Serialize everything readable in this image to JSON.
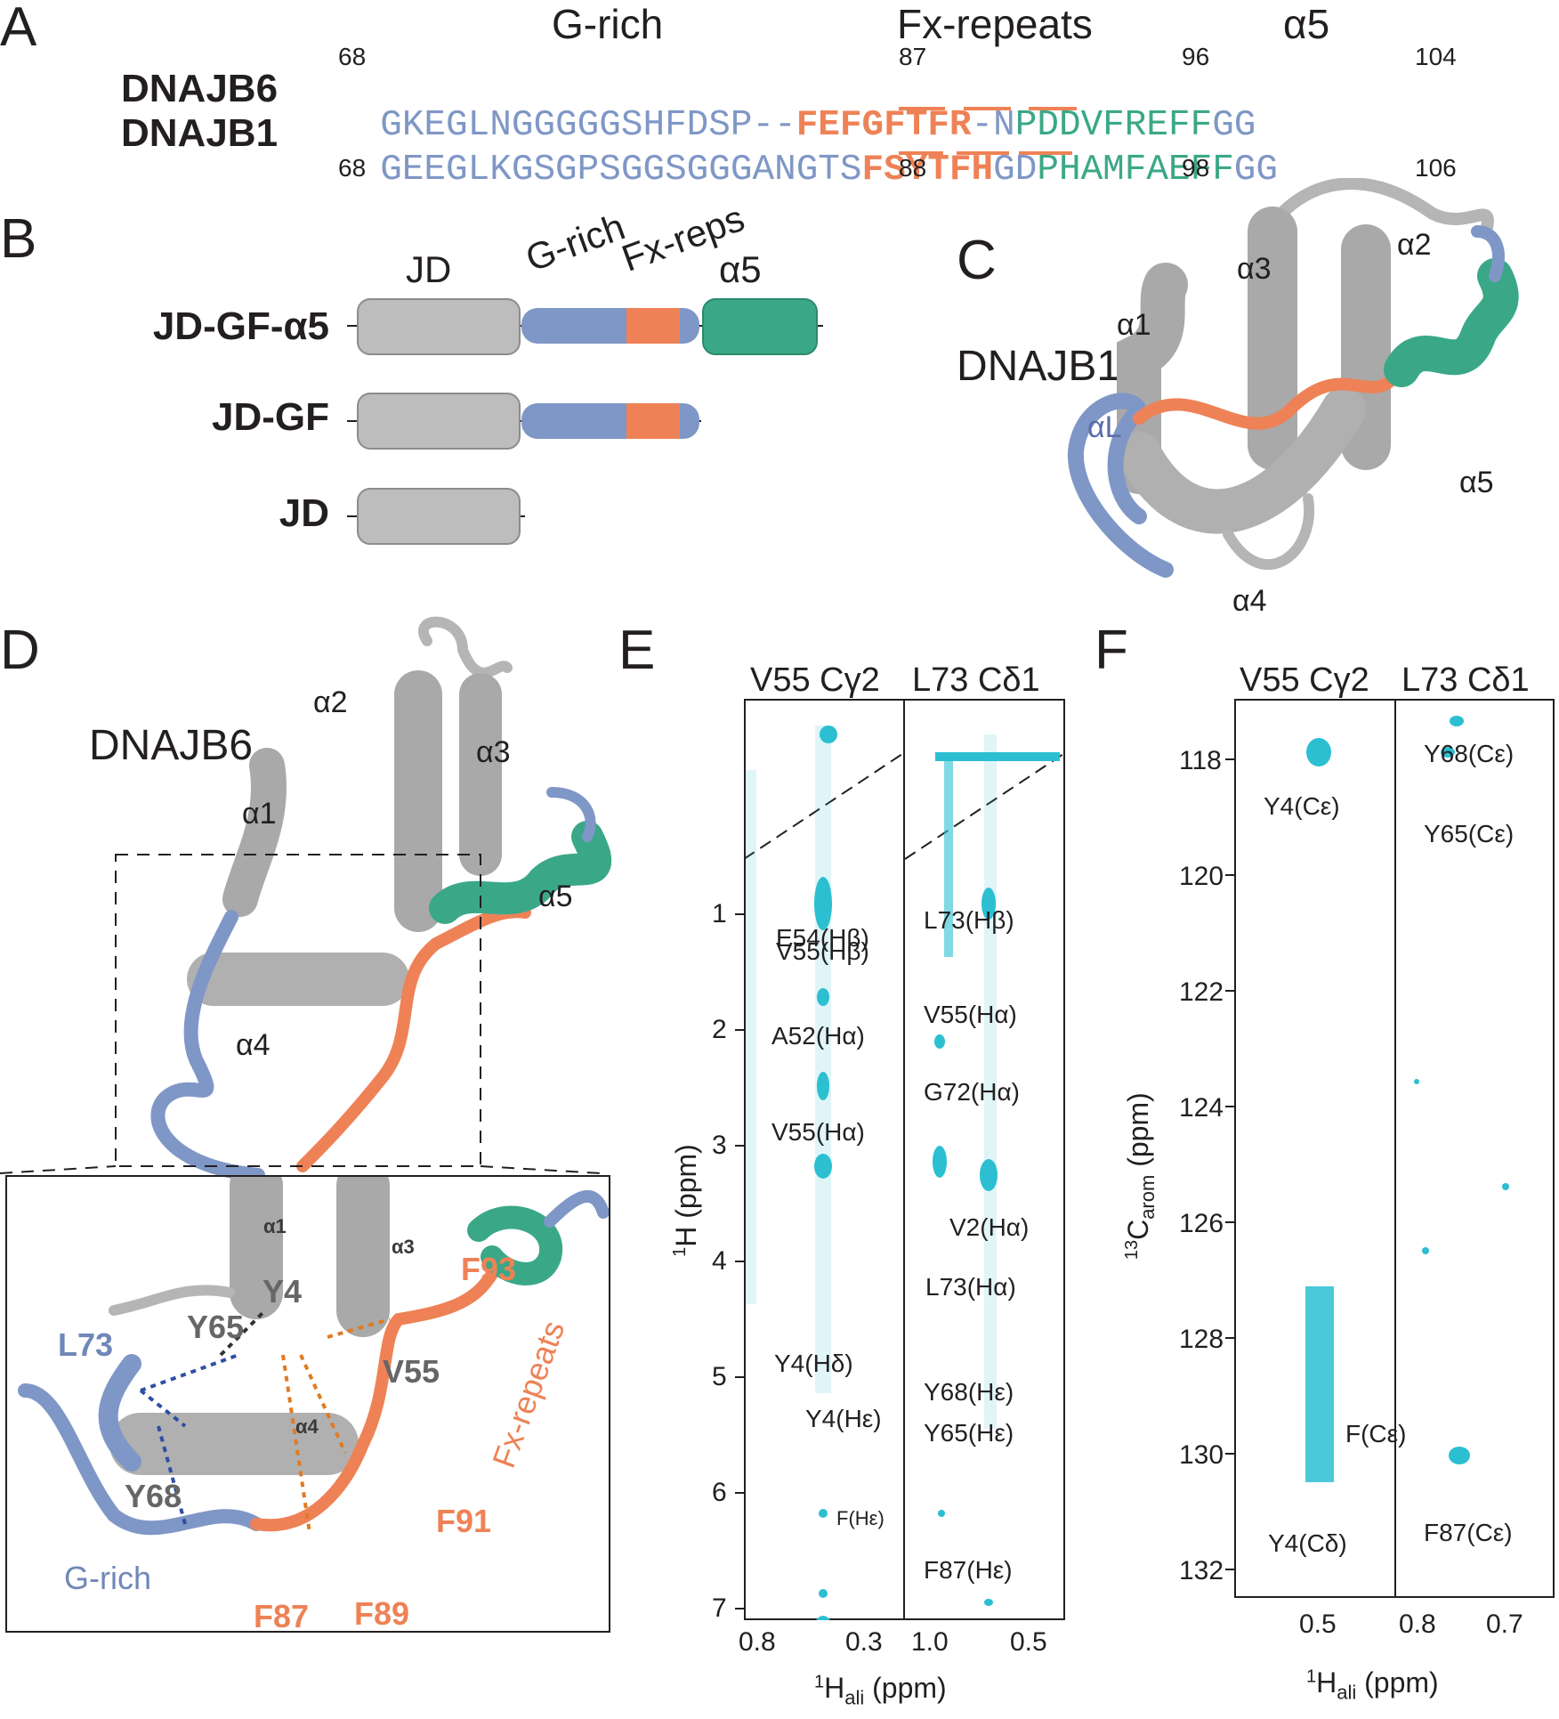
{
  "panels": {
    "A": "A",
    "B": "B",
    "C": "C",
    "D": "D",
    "E": "E",
    "F": "F"
  },
  "colors": {
    "grich": "#7f97c6",
    "fx": "#ee8256",
    "a5": "#3aa887",
    "jd": "#bdbdbd",
    "cyan": "#2bbfd1",
    "text": "#231f20"
  },
  "panelA": {
    "headers": {
      "grich": "G-rich",
      "fx": "Fx-repeats",
      "a5": "α5"
    },
    "seqs": [
      {
        "name": "DNAJB6",
        "grich": "GKEGLNGGGGGSHFDSP--",
        "fx": "FEFGFTFR",
        "link": "-N",
        "a5": "PDDVFREFF",
        "tail": "GG",
        "nums": [
          "68",
          "87",
          "96",
          "104"
        ]
      },
      {
        "name": "DNAJB1",
        "grich": "GEEGLKGSGPSGGSGGGANGTS",
        "fx": "FSYTFH",
        "link": "GD",
        "a5": "PHAMFAEFF",
        "tail": "GG",
        "nums": [
          "68",
          "88",
          "98",
          "106"
        ]
      }
    ]
  },
  "panelB": {
    "headers": {
      "jd": "JD",
      "grich": "G-rich",
      "fx": "Fx-reps",
      "a5": "α5"
    },
    "constructs": [
      "JD-GF-α5",
      "JD-GF",
      "JD"
    ]
  },
  "panelC": {
    "title": "DNAJB1",
    "labels": {
      "a1": "α1",
      "a2": "α2",
      "a3": "α3",
      "a4": "α4",
      "a5": "α5",
      "aL": "αL"
    }
  },
  "panelD": {
    "title": "DNAJB6",
    "labels": {
      "a1": "α1",
      "a2": "α2",
      "a3": "α3",
      "a4": "α4",
      "a5": "α5"
    },
    "inset": {
      "a1": "α1",
      "a3": "α3",
      "a4": "α4",
      "L73": "L73",
      "Y65": "Y65",
      "Y4": "Y4",
      "V55": "V55",
      "Y68": "Y68",
      "F93": "F93",
      "F91": "F91",
      "F87": "F87",
      "F89": "F89",
      "grich": "G-rich",
      "fx": "Fx-repeats"
    }
  },
  "panelE": {
    "strip1": "V55 Cγ2",
    "strip2": "L73 Cδ1",
    "ylabel_sup": "1",
    "ylabel": "H (ppm)",
    "xlabel_sup": "1",
    "xlabel": "H",
    "xlabel_sub": "ali",
    "xlabel_unit": " (ppm)",
    "yticks": [
      "1",
      "2",
      "3",
      "4",
      "5",
      "6",
      "7"
    ],
    "xticks1": [
      "0.8",
      "0.3"
    ],
    "xticks2": [
      "1.0",
      "0.5"
    ],
    "ann1": [
      "V55(Hβ)",
      "E54(Hβ)",
      "A52(Hα)",
      "V55(Hα)",
      "Y4(Hδ)",
      "Y4(Hε)",
      "F(Hε)"
    ],
    "ann2": [
      "L73(Hβ)",
      "V55(Hα)",
      "G72(Hα)",
      "V2(Hα)",
      "L73(Hα)",
      "Y68(Hε)",
      "Y65(Hε)",
      "F87(Hε)"
    ]
  },
  "panelF": {
    "strip1": "V55 Cγ2",
    "strip2": "L73 Cδ1",
    "ylabel_sup": "13",
    "ylabel": "C",
    "ylabel_sub": "arom",
    "ylabel_unit": " (ppm)",
    "xlabel_sup": "1",
    "xlabel": "H",
    "xlabel_sub": "ali",
    "xlabel_unit": " (ppm)",
    "yticks": [
      "118",
      "120",
      "122",
      "124",
      "126",
      "128",
      "130",
      "132"
    ],
    "xticks1": [
      "0.5"
    ],
    "xticks2": [
      "0.8",
      "0.7"
    ],
    "ann1": [
      "Y4(Cε)",
      "F(Cε)",
      "Y4(Cδ)"
    ],
    "ann2": [
      "Y68(Cε)",
      "Y65(Cε)",
      "F87(Cε)"
    ]
  }
}
